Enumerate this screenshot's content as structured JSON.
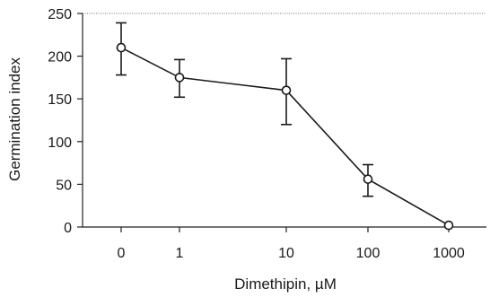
{
  "chart_data": {
    "type": "line",
    "title": "",
    "xlabel": "Dimethipin, µM",
    "ylabel": "Germination index",
    "categories": [
      "0",
      "1",
      "10",
      "100",
      "1000"
    ],
    "x_scale": "log (categorical, with 0 control)",
    "ylim": [
      0,
      250
    ],
    "yticks": [
      0,
      50,
      100,
      150,
      200,
      250
    ],
    "grid": false,
    "legend": "none",
    "series": [
      {
        "values": [
          210,
          175,
          160,
          56,
          2
        ],
        "error_low": [
          178,
          152,
          120,
          36,
          2
        ],
        "error_high": [
          239,
          196,
          197,
          73,
          2
        ],
        "marker": "open-circle",
        "color": "#1a1a1a"
      }
    ]
  }
}
